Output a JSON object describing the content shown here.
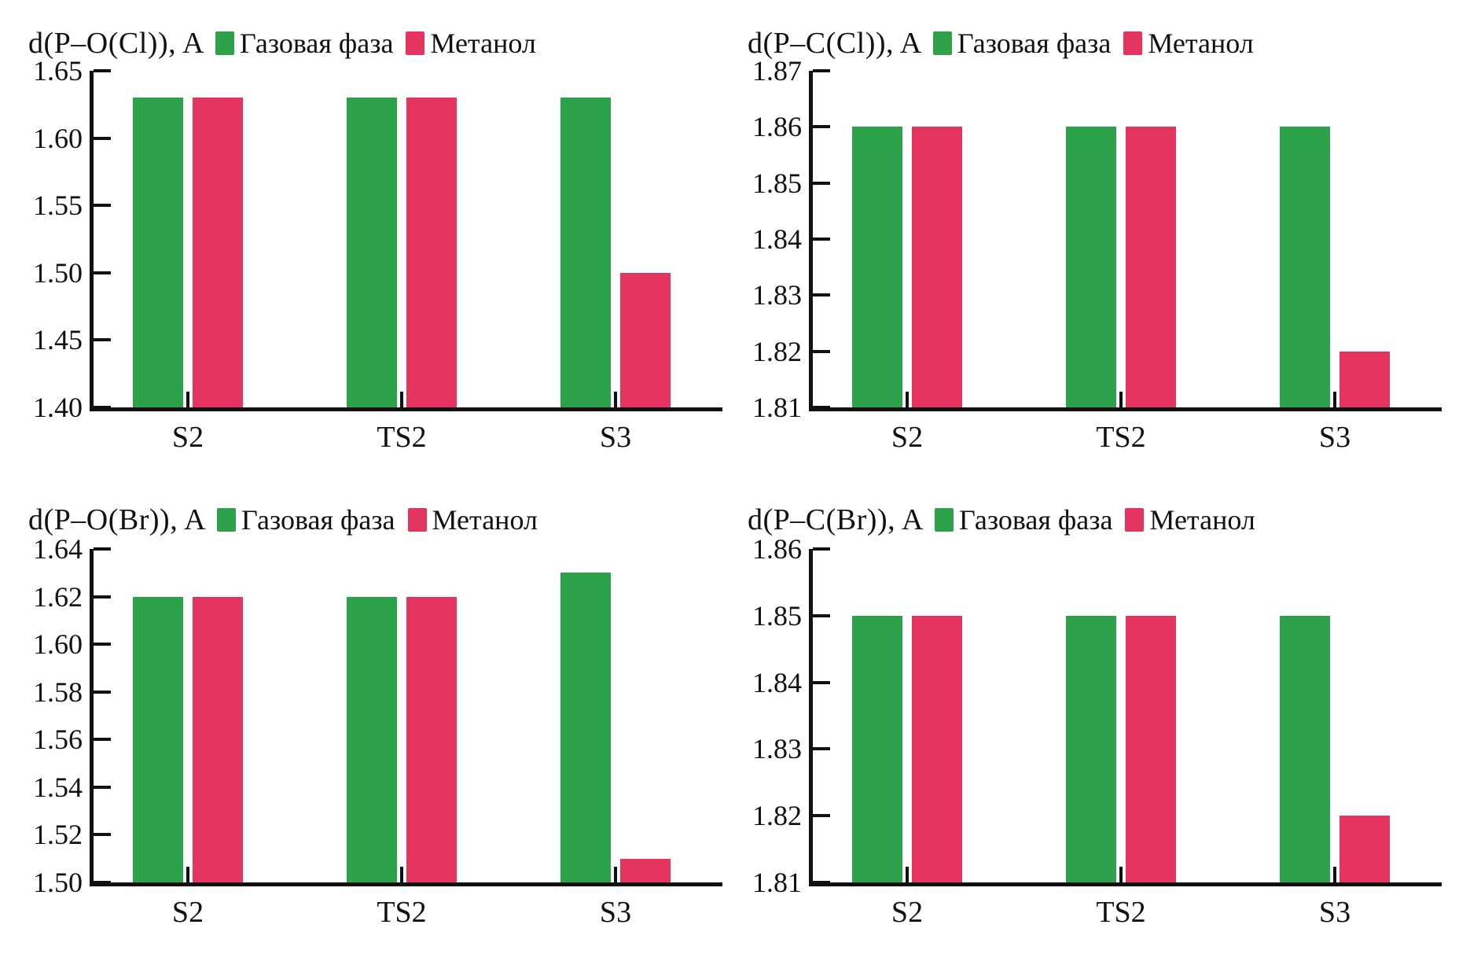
{
  "page": {
    "background": "#ffffff",
    "axis_color": "#111111"
  },
  "colors": {
    "gas_phase": "#2DA24A",
    "methanol": "#E33560"
  },
  "chart_data": [
    {
      "type": "bar",
      "title": "d(P–O(Cl)), A",
      "categories": [
        "S2",
        "TS2",
        "S3"
      ],
      "series": [
        {
          "name": "Газовая фаза",
          "color": "#2DA24A",
          "values": [
            1.63,
            1.63,
            1.63
          ]
        },
        {
          "name": "Метанол",
          "color": "#E33560",
          "values": [
            1.63,
            1.63,
            1.5
          ]
        }
      ],
      "ylim": [
        1.4,
        1.65
      ],
      "yticks": [
        "1.65",
        "1.60",
        "1.55",
        "1.50",
        "1.45",
        "1.40"
      ],
      "xlabel": "",
      "ylabel": "d(P–O(Cl)), A",
      "grid": false,
      "legend_position": "top"
    },
    {
      "type": "bar",
      "title": "d(P–C(Cl)), A",
      "categories": [
        "S2",
        "TS2",
        "S3"
      ],
      "series": [
        {
          "name": "Газовая фаза",
          "color": "#2DA24A",
          "values": [
            1.86,
            1.86,
            1.86
          ]
        },
        {
          "name": "Метанол",
          "color": "#E33560",
          "values": [
            1.86,
            1.86,
            1.82
          ]
        }
      ],
      "ylim": [
        1.81,
        1.87
      ],
      "yticks": [
        "1.87",
        "1.86",
        "1.85",
        "1.84",
        "1.83",
        "1.82",
        "1.81"
      ],
      "xlabel": "",
      "ylabel": "d(P–C(Cl)), A",
      "grid": false,
      "legend_position": "top"
    },
    {
      "type": "bar",
      "title": "d(P–O(Br)), A",
      "categories": [
        "S2",
        "TS2",
        "S3"
      ],
      "series": [
        {
          "name": "Газовая фаза",
          "color": "#2DA24A",
          "values": [
            1.62,
            1.62,
            1.63
          ]
        },
        {
          "name": "Метанол",
          "color": "#E33560",
          "values": [
            1.62,
            1.62,
            1.51
          ]
        }
      ],
      "ylim": [
        1.5,
        1.64
      ],
      "yticks": [
        "1.64",
        "1.62",
        "1.60",
        "1.58",
        "1.56",
        "1.54",
        "1.52",
        "1.50"
      ],
      "xlabel": "",
      "ylabel": "d(P–O(Br)), A",
      "grid": false,
      "legend_position": "top"
    },
    {
      "type": "bar",
      "title": "d(P–C(Br)), A",
      "categories": [
        "S2",
        "TS2",
        "S3"
      ],
      "series": [
        {
          "name": "Газовая фаза",
          "color": "#2DA24A",
          "values": [
            1.85,
            1.85,
            1.85
          ]
        },
        {
          "name": "Метанол",
          "color": "#E33560",
          "values": [
            1.85,
            1.85,
            1.82
          ]
        }
      ],
      "ylim": [
        1.81,
        1.86
      ],
      "yticks": [
        "1.86",
        "1.85",
        "1.84",
        "1.83",
        "1.82",
        "1.81"
      ],
      "xlabel": "",
      "ylabel": "d(P–C(Br)), A",
      "grid": false,
      "legend_position": "top"
    }
  ]
}
